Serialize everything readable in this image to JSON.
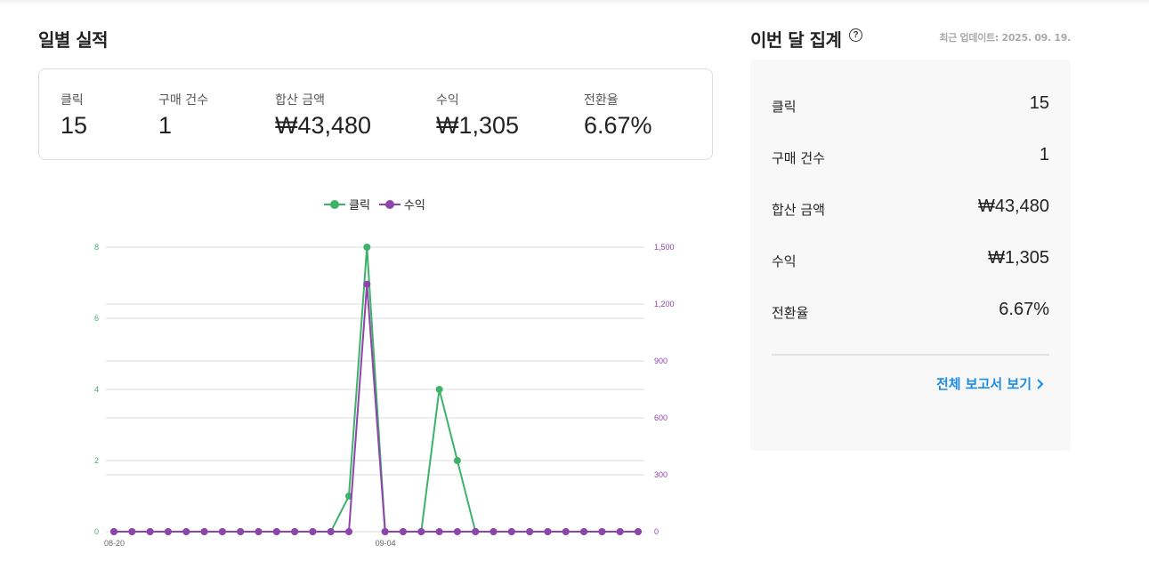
{
  "daily": {
    "title": "일별 실적",
    "kpis": [
      {
        "label": "클릭",
        "value": "15"
      },
      {
        "label": "구매 건수",
        "value": "1"
      },
      {
        "label": "합산 금액",
        "value": "₩43,480"
      },
      {
        "label": "수익",
        "value": "₩1,305"
      },
      {
        "label": "전환율",
        "value": "6.67%"
      }
    ]
  },
  "monthly": {
    "title": "이번 달 집계",
    "help_icon": "help-circle-icon",
    "updated": "최근 업데이트: 2025. 09. 19.",
    "rows": [
      {
        "label": "클릭",
        "value": "15"
      },
      {
        "label": "구매 건수",
        "value": "1"
      },
      {
        "label": "합산 금액",
        "value": "₩43,480"
      },
      {
        "label": "수익",
        "value": "₩1,305"
      },
      {
        "label": "전환율",
        "value": "6.67%"
      }
    ],
    "report_link": "전체 보고서 보기",
    "link_icon": "chevron-right-icon"
  },
  "colors": {
    "click": "#3eb26a",
    "revenue": "#8e44ad",
    "link": "#1d8ce0"
  },
  "chart_data": {
    "type": "line",
    "x": [
      "08-20",
      "08-21",
      "08-22",
      "08-23",
      "08-24",
      "08-25",
      "08-26",
      "08-27",
      "08-28",
      "08-29",
      "08-30",
      "08-31",
      "09-01",
      "09-02",
      "09-03",
      "09-04",
      "09-05",
      "09-06",
      "09-07",
      "09-08",
      "09-09",
      "09-10",
      "09-11",
      "09-12",
      "09-13",
      "09-14",
      "09-15",
      "09-16",
      "09-17",
      "09-18"
    ],
    "x_tick_labels": [
      "08-20",
      "09-04"
    ],
    "series": [
      {
        "name": "클릭",
        "axis": "left",
        "color": "#3eb26a",
        "values": [
          0,
          0,
          0,
          0,
          0,
          0,
          0,
          0,
          0,
          0,
          0,
          0,
          0,
          1,
          8,
          0,
          0,
          0,
          4,
          2,
          0,
          0,
          0,
          0,
          0,
          0,
          0,
          0,
          0,
          0
        ]
      },
      {
        "name": "수익",
        "axis": "right",
        "color": "#8e44ad",
        "values": [
          0,
          0,
          0,
          0,
          0,
          0,
          0,
          0,
          0,
          0,
          0,
          0,
          0,
          0,
          1305,
          0,
          0,
          0,
          0,
          0,
          0,
          0,
          0,
          0,
          0,
          0,
          0,
          0,
          0,
          0
        ]
      }
    ],
    "y_left": {
      "min": 0,
      "max": 8,
      "ticks": [
        "0",
        "2",
        "4",
        "6",
        "8"
      ]
    },
    "y_right": {
      "min": 0,
      "max": 1500,
      "ticks": [
        "0",
        "300",
        "600",
        "900",
        "1,200",
        "1,500"
      ]
    },
    "legend": "top-center",
    "grid": true
  }
}
